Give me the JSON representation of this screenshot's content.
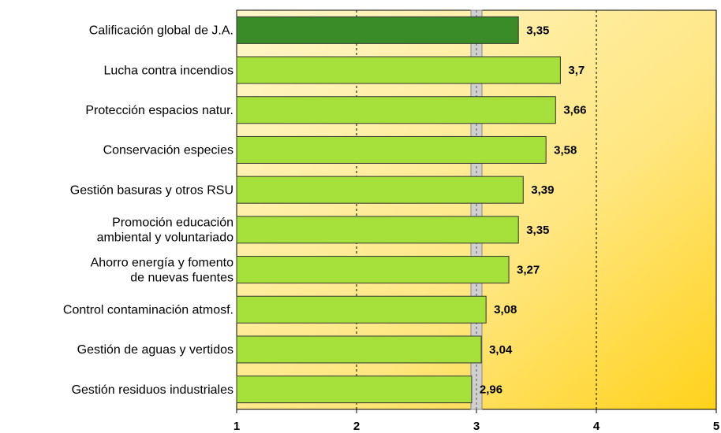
{
  "chart_data": {
    "type": "barh",
    "categories": [
      [
        "Calificación global de J.A."
      ],
      [
        "Lucha contra incendios"
      ],
      [
        "Protección espacios natur."
      ],
      [
        "Conservación especies"
      ],
      [
        "Gestión basuras y otros RSU"
      ],
      [
        "Promoción educación",
        "ambiental y voluntariado"
      ],
      [
        "Ahorro energía y fomento",
        "de nuevas fuentes"
      ],
      [
        "Control contaminación atmosf."
      ],
      [
        "Gestión de aguas y vertidos"
      ],
      [
        "Gestión residuos industriales"
      ]
    ],
    "values": [
      3.35,
      3.7,
      3.66,
      3.58,
      3.39,
      3.35,
      3.27,
      3.08,
      3.04,
      2.96
    ],
    "value_labels": [
      "3,35",
      "3,7",
      "3,66",
      "3,58",
      "3,39",
      "3,35",
      "3,27",
      "3,08",
      "3,04",
      "2,96"
    ],
    "colors": [
      "#3a8c28",
      "#a6e03a",
      "#a6e03a",
      "#a6e03a",
      "#a6e03a",
      "#a6e03a",
      "#a6e03a",
      "#a6e03a",
      "#a6e03a",
      "#a6e03a"
    ],
    "xlim": [
      1,
      5
    ],
    "xticks": [
      1,
      2,
      3,
      4,
      5
    ],
    "reference_line": 3,
    "grid": true
  }
}
